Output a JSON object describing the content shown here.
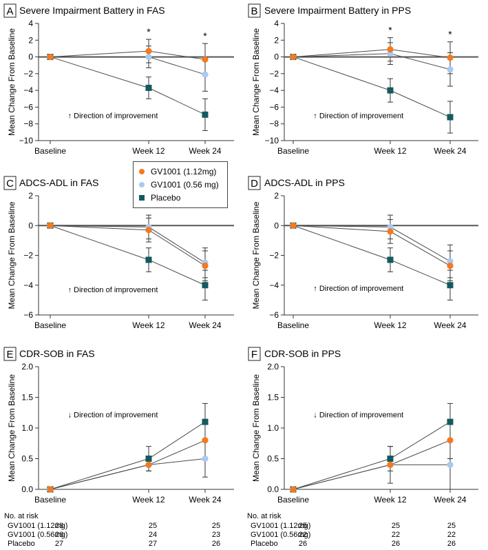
{
  "colors": {
    "gv_high": "#F4791F",
    "gv_low": "#A9C9F0",
    "placebo": "#145A5F",
    "line": "#4a4a4a",
    "zero_line": "#555555"
  },
  "legend": {
    "items": [
      {
        "label": "GV1001 (1.12mg)",
        "marker": "circle",
        "color_key": "gv_high"
      },
      {
        "label": "GV1001 (0.56 mg)",
        "marker": "circle",
        "color_key": "gv_low"
      },
      {
        "label": "Placebo",
        "marker": "square",
        "color_key": "placebo"
      }
    ]
  },
  "chart_data": [
    {
      "panel": "A",
      "type": "line",
      "title": "Severe Impairment Battery in FAS",
      "xlabel": "",
      "ylabel": "Mean Change From Baseline",
      "categories": [
        "Baseline",
        "Week 12",
        "Week 24"
      ],
      "ylim": [
        -10,
        4
      ],
      "yticks": [
        4,
        2,
        0,
        -2,
        -4,
        -6,
        -8,
        -10
      ],
      "annotation": "↑ Direction of improvement",
      "annotation_at": [
        0.15,
        -7.0
      ],
      "significance": [
        "",
        "*",
        "*"
      ],
      "zero_line": 0,
      "series": [
        {
          "name": "GV1001 (1.12mg)",
          "marker": "circle",
          "color_key": "gv_high",
          "values": [
            0,
            0.7,
            -0.3
          ],
          "err_low": [
            0,
            1.4,
            1.9
          ],
          "err_high": [
            0,
            1.4,
            1.9
          ]
        },
        {
          "name": "GV1001 (0.56 mg)",
          "marker": "circle",
          "color_key": "gv_low",
          "values": [
            0,
            0,
            -2.1
          ],
          "err_low": [
            0,
            1.3,
            2.0
          ],
          "err_high": [
            0,
            1.3,
            2.0
          ]
        },
        {
          "name": "Placebo",
          "marker": "square",
          "color_key": "placebo",
          "values": [
            0,
            -3.7,
            -6.9
          ],
          "err_low": [
            0,
            1.3,
            1.9
          ],
          "err_high": [
            0,
            1.3,
            1.9
          ]
        }
      ]
    },
    {
      "panel": "B",
      "type": "line",
      "title": "Severe Impairment Battery in PPS",
      "xlabel": "",
      "ylabel": "Mean Change From Baseline",
      "categories": [
        "Baseline",
        "Week 12",
        "Week 24"
      ],
      "ylim": [
        -10,
        4
      ],
      "yticks": [
        4,
        2,
        0,
        -2,
        -4,
        -6,
        -8,
        -10
      ],
      "annotation": "↑ Direction of improvement",
      "annotation_at": [
        0.15,
        -7.0
      ],
      "significance": [
        "",
        "*",
        "*"
      ],
      "zero_line": 0,
      "series": [
        {
          "name": "GV1001 (1.12mg)",
          "marker": "circle",
          "color_key": "gv_high",
          "values": [
            0,
            0.9,
            -0.1
          ],
          "err_low": [
            0,
            1.4,
            1.9
          ],
          "err_high": [
            0,
            1.4,
            1.9
          ]
        },
        {
          "name": "GV1001 (0.56 mg)",
          "marker": "circle",
          "color_key": "gv_low",
          "values": [
            0,
            0.4,
            -1.5
          ],
          "err_low": [
            0,
            1.3,
            2.0
          ],
          "err_high": [
            0,
            1.3,
            2.0
          ]
        },
        {
          "name": "Placebo",
          "marker": "square",
          "color_key": "placebo",
          "values": [
            0,
            -4.0,
            -7.2
          ],
          "err_low": [
            0,
            1.4,
            1.9
          ],
          "err_high": [
            0,
            1.4,
            1.9
          ]
        }
      ]
    },
    {
      "panel": "C",
      "type": "line",
      "title": "ADCS-ADL in FAS",
      "xlabel": "",
      "ylabel": "Mean Change From Baseline",
      "categories": [
        "Baseline",
        "Week 12",
        "Week 24"
      ],
      "ylim": [
        -6,
        2
      ],
      "yticks": [
        2,
        0,
        -2,
        -4,
        -6
      ],
      "annotation": "↑ Direction of improvement",
      "annotation_at": [
        0.15,
        -4.3
      ],
      "significance": [
        "",
        "",
        ""
      ],
      "zero_line": 0,
      "series": [
        {
          "name": "GV1001 (1.12mg)",
          "marker": "circle",
          "color_key": "gv_high",
          "values": [
            0,
            -0.3,
            -2.7
          ],
          "err_low": [
            0,
            0.8,
            1.0
          ],
          "err_high": [
            0,
            0.8,
            1.0
          ]
        },
        {
          "name": "GV1001 (0.56 mg)",
          "marker": "circle",
          "color_key": "gv_low",
          "values": [
            0,
            -0.1,
            -2.5
          ],
          "err_low": [
            0,
            0.8,
            1.0
          ],
          "err_high": [
            0,
            0.8,
            1.0
          ]
        },
        {
          "name": "Placebo",
          "marker": "square",
          "color_key": "placebo",
          "values": [
            0,
            -2.3,
            -4.0
          ],
          "err_low": [
            0,
            0.8,
            1.0
          ],
          "err_high": [
            0,
            0.8,
            1.0
          ]
        }
      ]
    },
    {
      "panel": "D",
      "type": "line",
      "title": "ADCS-ADL in PPS",
      "xlabel": "",
      "ylabel": "Mean Change From Baseline",
      "categories": [
        "Baseline",
        "Week 12",
        "Week 24"
      ],
      "ylim": [
        -6,
        2
      ],
      "yticks": [
        2,
        0,
        -2,
        -4,
        -6
      ],
      "annotation": "↑ Direction of improvement",
      "annotation_at": [
        0.15,
        -4.2
      ],
      "significance": [
        "",
        "",
        ""
      ],
      "zero_line": 0,
      "series": [
        {
          "name": "GV1001 (1.12mg)",
          "marker": "circle",
          "color_key": "gv_high",
          "values": [
            0,
            -0.4,
            -2.7
          ],
          "err_low": [
            0,
            0.8,
            1.0
          ],
          "err_high": [
            0,
            0.8,
            1.0
          ]
        },
        {
          "name": "GV1001 (0.56 mg)",
          "marker": "circle",
          "color_key": "gv_low",
          "values": [
            0,
            -0.1,
            -2.4
          ],
          "err_low": [
            0,
            0.8,
            1.1
          ],
          "err_high": [
            0,
            0.8,
            1.1
          ]
        },
        {
          "name": "Placebo",
          "marker": "square",
          "color_key": "placebo",
          "values": [
            0,
            -2.3,
            -4.0
          ],
          "err_low": [
            0,
            0.8,
            1.0
          ],
          "err_high": [
            0,
            0.8,
            1.0
          ]
        }
      ]
    },
    {
      "panel": "E",
      "type": "line",
      "title": "CDR-SOB in FAS",
      "xlabel": "",
      "ylabel": "Mean Change From Baseline",
      "categories": [
        "Baseline",
        "Week 12",
        "Week 24"
      ],
      "ylim": [
        0,
        2.0
      ],
      "yticks": [
        2.0,
        1.5,
        1.0,
        0.5,
        0.0
      ],
      "annotation": "↓ Direction of improvement",
      "annotation_at": [
        0.15,
        1.22
      ],
      "significance": [
        "",
        "",
        ""
      ],
      "zero_line": null,
      "series": [
        {
          "name": "GV1001 (1.12mg)",
          "marker": "circle",
          "color_key": "gv_high",
          "values": [
            0,
            0.4,
            0.8
          ],
          "err_low": [
            0,
            0.0,
            0.0
          ],
          "err_high": [
            0,
            0.0,
            0.0
          ]
        },
        {
          "name": "GV1001 (0.56 mg)",
          "marker": "circle",
          "color_key": "gv_low",
          "values": [
            0,
            0.4,
            0.5
          ],
          "err_low": [
            0,
            0.1,
            0.3
          ],
          "err_high": [
            0,
            0.1,
            0.3
          ]
        },
        {
          "name": "Placebo",
          "marker": "square",
          "color_key": "placebo",
          "values": [
            0,
            0.5,
            1.1
          ],
          "err_low": [
            0,
            0.2,
            0.3
          ],
          "err_high": [
            0,
            0.2,
            0.3
          ]
        }
      ],
      "risk_table": {
        "header": "No. at risk",
        "rows": [
          {
            "label": "GV1001 (1.12mg)",
            "values": [
              "28",
              "25",
              "25"
            ]
          },
          {
            "label": "GV1001 (0.56mg)",
            "values": [
              "26",
              "24",
              "23"
            ]
          },
          {
            "label": "Placebo",
            "values": [
              "27",
              "27",
              "26"
            ]
          }
        ]
      }
    },
    {
      "panel": "F",
      "type": "line",
      "title": "CDR-SOB in PPS",
      "xlabel": "",
      "ylabel": "Mean Change From Baseline",
      "categories": [
        "Baseline",
        "Week 12",
        "Week 24"
      ],
      "ylim": [
        0,
        2.0
      ],
      "yticks": [
        2.0,
        1.5,
        1.0,
        0.5,
        0.0
      ],
      "annotation": "↓ Direction of improvement",
      "annotation_at": [
        0.15,
        1.22
      ],
      "significance": [
        "",
        "",
        ""
      ],
      "zero_line": null,
      "series": [
        {
          "name": "GV1001 (1.12mg)",
          "marker": "circle",
          "color_key": "gv_high",
          "values": [
            0,
            0.4,
            0.8
          ],
          "err_low": [
            0,
            0.3,
            0.3
          ],
          "err_high": [
            0,
            0.3,
            0.3
          ]
        },
        {
          "name": "GV1001 (0.56 mg)",
          "marker": "circle",
          "color_key": "gv_low",
          "values": [
            0,
            0.4,
            0.4
          ],
          "err_low": [
            0,
            0.0,
            0.4
          ],
          "err_high": [
            0,
            0.0,
            0.4
          ]
        },
        {
          "name": "Placebo",
          "marker": "square",
          "color_key": "placebo",
          "values": [
            0,
            0.5,
            1.1
          ],
          "err_low": [
            0,
            0.2,
            0.3
          ],
          "err_high": [
            0,
            0.2,
            0.3
          ]
        }
      ],
      "risk_table": {
        "header": "No. at risk",
        "rows": [
          {
            "label": "GV1001 (1.12mg)",
            "values": [
              "25",
              "25",
              "25"
            ]
          },
          {
            "label": "GV1001 (0.56mg)",
            "values": [
              "22",
              "22",
              "22"
            ]
          },
          {
            "label": "Placebo",
            "values": [
              "26",
              "26",
              "26"
            ]
          }
        ]
      }
    }
  ]
}
